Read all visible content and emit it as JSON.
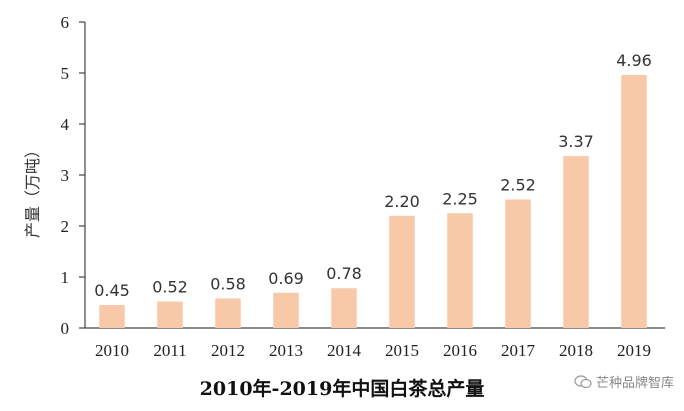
{
  "chart_data": {
    "type": "bar",
    "title": "2010年-2019年中国白茶总产量",
    "ylabel": "产量（万吨）",
    "xlabel": "",
    "categories": [
      "2010",
      "2011",
      "2012",
      "2013",
      "2014",
      "2015",
      "2016",
      "2017",
      "2018",
      "2019"
    ],
    "values": [
      0.45,
      0.52,
      0.58,
      0.69,
      0.78,
      2.2,
      2.25,
      2.52,
      3.37,
      4.96
    ],
    "data_labels": [
      "0.45",
      "0.52",
      "0.58",
      "0.69",
      "0.78",
      "2.20",
      "2.25",
      "2.52",
      "3.37",
      "4.96"
    ],
    "ylim": [
      0,
      6
    ],
    "yticks": [
      0,
      1,
      2,
      3,
      4,
      5,
      6
    ],
    "grid": false,
    "bar_color": "#f7c9a9"
  },
  "watermark": {
    "text": "芒种品牌智库",
    "icon": "wechat-icon"
  }
}
